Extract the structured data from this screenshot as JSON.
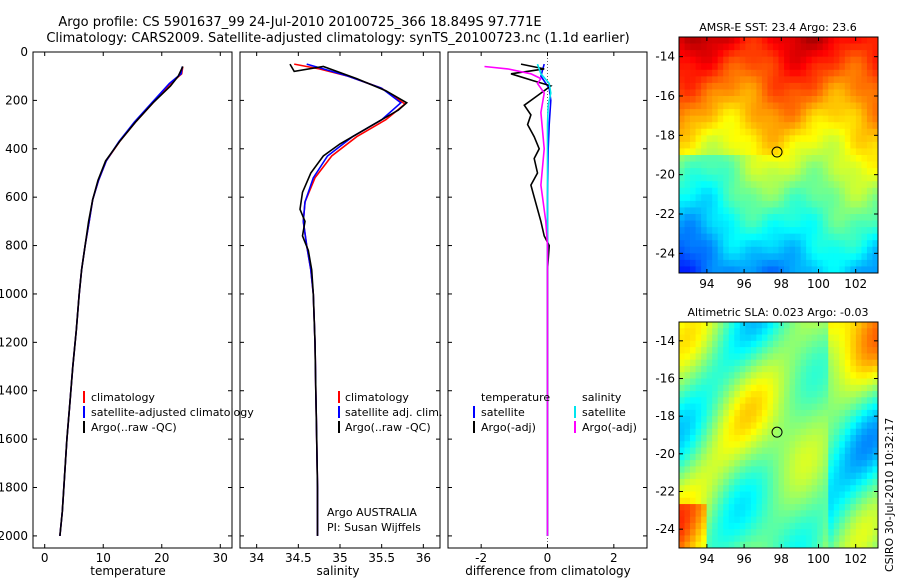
{
  "header": {
    "line1": "Argo profile: CS 5901637_99 24-Jul-2010 20100725_366 18.849S 97.771E",
    "line2": "Climatology: CARS2009. Satellite-adjusted climatology: synTS_20100723.nc (1.1d earlier)"
  },
  "footer": {
    "stamp": "CSIRO 30-Jul-2010 10:32:17"
  },
  "colors": {
    "climatology": "#ff0000",
    "satellite": "#0000ff",
    "argo": "#000000",
    "sal_satellite": "#00e5ee",
    "sal_argo": "#ff00ff"
  },
  "chart_data": [
    {
      "type": "line",
      "name": "temperature-panel",
      "xlabel": "temperature",
      "ylabel": "",
      "xlim": [
        -2,
        32
      ],
      "ylim": [
        0,
        2050
      ],
      "y_reversed": true,
      "xticks": [
        "0",
        "10",
        "20",
        "30"
      ],
      "xtick_values": [
        0,
        10,
        20,
        30
      ],
      "yticks": [
        "0",
        "200",
        "400",
        "600",
        "800",
        "1000",
        "1200",
        "1400",
        "1600",
        "1800",
        "2000"
      ],
      "ytick_values": [
        0,
        200,
        400,
        600,
        800,
        1000,
        1200,
        1400,
        1600,
        1800,
        2000
      ],
      "legend": [
        "climatology",
        "satellite-adjusted climatology",
        "Argo(..raw -QC)"
      ],
      "series": [
        {
          "name": "climatology",
          "points": [
            [
              23.6,
              60
            ],
            [
              23.4,
              90
            ],
            [
              21.5,
              130
            ],
            [
              18.5,
              210
            ],
            [
              15.5,
              290
            ],
            [
              12.8,
              370
            ],
            [
              10.5,
              450
            ],
            [
              9.2,
              530
            ],
            [
              8.2,
              610
            ],
            [
              7.6,
              700
            ],
            [
              6.9,
              800
            ],
            [
              6.3,
              900
            ],
            [
              5.9,
              1000
            ],
            [
              5.4,
              1150
            ],
            [
              4.8,
              1300
            ],
            [
              4.3,
              1450
            ],
            [
              3.8,
              1600
            ],
            [
              3.4,
              1750
            ],
            [
              3.0,
              1900
            ],
            [
              2.6,
              2000
            ]
          ]
        },
        {
          "name": "satellite",
          "points": [
            [
              23.5,
              60
            ],
            [
              23.3,
              90
            ],
            [
              21.3,
              130
            ],
            [
              18.3,
              210
            ],
            [
              15.3,
              290
            ],
            [
              12.7,
              370
            ],
            [
              10.5,
              450
            ],
            [
              9.2,
              530
            ],
            [
              8.2,
              610
            ],
            [
              7.6,
              700
            ],
            [
              6.9,
              800
            ],
            [
              6.3,
              900
            ],
            [
              5.9,
              1000
            ],
            [
              5.4,
              1150
            ],
            [
              4.8,
              1300
            ],
            [
              4.3,
              1450
            ],
            [
              3.8,
              1600
            ],
            [
              3.4,
              1750
            ],
            [
              3.0,
              1900
            ],
            [
              2.6,
              2000
            ]
          ]
        },
        {
          "name": "argo",
          "points": [
            [
              23.6,
              60
            ],
            [
              22.8,
              100
            ],
            [
              21.5,
              140
            ],
            [
              18.5,
              210
            ],
            [
              15.5,
              290
            ],
            [
              12.8,
              370
            ],
            [
              10.4,
              450
            ],
            [
              9.1,
              530
            ],
            [
              8.2,
              610
            ],
            [
              7.5,
              700
            ],
            [
              6.9,
              800
            ],
            [
              6.3,
              900
            ],
            [
              5.9,
              1000
            ],
            [
              5.4,
              1150
            ],
            [
              4.8,
              1300
            ],
            [
              4.3,
              1450
            ],
            [
              3.8,
              1600
            ],
            [
              3.4,
              1750
            ],
            [
              3.0,
              1900
            ],
            [
              2.6,
              2000
            ]
          ]
        }
      ]
    },
    {
      "type": "line",
      "name": "salinity-panel",
      "xlabel": "salinity",
      "xlim": [
        33.8,
        36.2
      ],
      "ylim": [
        0,
        2050
      ],
      "y_reversed": true,
      "xticks": [
        "34",
        "34.5",
        "35",
        "35.5",
        "36"
      ],
      "xtick_values": [
        34,
        34.5,
        35,
        35.5,
        36
      ],
      "legend": [
        "climatology",
        "satellite adj. clim.",
        "Argo(..raw -QC)"
      ],
      "annotations": [
        "Argo AUSTRALIA",
        "PI: Susan Wijffels"
      ],
      "series": [
        {
          "name": "climatology",
          "points": [
            [
              34.45,
              50
            ],
            [
              34.75,
              70
            ],
            [
              35.1,
              100
            ],
            [
              35.5,
              150
            ],
            [
              35.78,
              215
            ],
            [
              35.55,
              280
            ],
            [
              35.2,
              350
            ],
            [
              34.9,
              430
            ],
            [
              34.7,
              520
            ],
            [
              34.58,
              620
            ],
            [
              34.56,
              700
            ],
            [
              34.6,
              800
            ],
            [
              34.65,
              900
            ],
            [
              34.68,
              1000
            ],
            [
              34.7,
              1200
            ],
            [
              34.71,
              1400
            ],
            [
              34.72,
              1600
            ],
            [
              34.73,
              1800
            ],
            [
              34.73,
              2000
            ]
          ]
        },
        {
          "name": "satellite",
          "points": [
            [
              34.6,
              50
            ],
            [
              34.8,
              70
            ],
            [
              35.1,
              100
            ],
            [
              35.5,
              150
            ],
            [
              35.73,
              210
            ],
            [
              35.5,
              280
            ],
            [
              35.15,
              350
            ],
            [
              34.85,
              430
            ],
            [
              34.68,
              520
            ],
            [
              34.58,
              620
            ],
            [
              34.56,
              700
            ],
            [
              34.6,
              800
            ],
            [
              34.65,
              900
            ],
            [
              34.68,
              1000
            ],
            [
              34.7,
              1200
            ],
            [
              34.71,
              1400
            ],
            [
              34.72,
              1600
            ],
            [
              34.73,
              1800
            ],
            [
              34.73,
              2000
            ]
          ]
        },
        {
          "name": "argo",
          "points": [
            [
              34.4,
              50
            ],
            [
              34.45,
              80
            ],
            [
              34.8,
              60
            ],
            [
              35.2,
              110
            ],
            [
              35.55,
              160
            ],
            [
              35.8,
              210
            ],
            [
              35.7,
              240
            ],
            [
              35.3,
              320
            ],
            [
              35.0,
              380
            ],
            [
              34.8,
              430
            ],
            [
              34.65,
              500
            ],
            [
              34.55,
              580
            ],
            [
              34.52,
              650
            ],
            [
              34.58,
              700
            ],
            [
              34.55,
              760
            ],
            [
              34.62,
              820
            ],
            [
              34.66,
              900
            ],
            [
              34.68,
              1000
            ],
            [
              34.7,
              1200
            ],
            [
              34.71,
              1400
            ],
            [
              34.72,
              1600
            ],
            [
              34.73,
              1800
            ],
            [
              34.73,
              2000
            ]
          ]
        }
      ]
    },
    {
      "type": "line",
      "name": "difference-panel",
      "xlabel": "difference from climatology",
      "xlim": [
        -3,
        3
      ],
      "ylim": [
        0,
        2050
      ],
      "y_reversed": true,
      "xticks": [
        "-2",
        "0",
        "2"
      ],
      "xtick_values": [
        -2,
        0,
        2
      ],
      "legend_temperature": [
        "temperature",
        "satellite",
        "Argo(-adj)"
      ],
      "legend_salinity": [
        "salinity",
        "satellite",
        "Argo(-adj)"
      ],
      "series": [
        {
          "name": "temperature satellite",
          "points": [
            [
              -0.1,
              50
            ],
            [
              -0.2,
              100
            ],
            [
              0.05,
              150
            ],
            [
              0.1,
              200
            ],
            [
              0.05,
              300
            ],
            [
              0.02,
              400
            ],
            [
              0.0,
              600
            ],
            [
              0.0,
              1000
            ],
            [
              0.0,
              2000
            ]
          ]
        },
        {
          "name": "temperature argo",
          "points": [
            [
              -0.8,
              50
            ],
            [
              -0.1,
              70
            ],
            [
              -1.1,
              90
            ],
            [
              -0.4,
              120
            ],
            [
              0.1,
              140
            ],
            [
              -0.3,
              180
            ],
            [
              -0.7,
              220
            ],
            [
              -0.5,
              260
            ],
            [
              -0.6,
              300
            ],
            [
              -0.4,
              350
            ],
            [
              -0.25,
              400
            ],
            [
              -0.4,
              440
            ],
            [
              -0.3,
              500
            ],
            [
              -0.5,
              550
            ],
            [
              -0.4,
              600
            ],
            [
              -0.2,
              700
            ],
            [
              -0.1,
              760
            ],
            [
              0.05,
              800
            ],
            [
              0.0,
              900
            ],
            [
              0.0,
              1200
            ],
            [
              0.0,
              2000
            ]
          ]
        },
        {
          "name": "salinity satellite",
          "points": [
            [
              -0.3,
              50
            ],
            [
              -0.2,
              90
            ],
            [
              0.05,
              130
            ],
            [
              0.1,
              170
            ],
            [
              0.02,
              220
            ],
            [
              0.0,
              300
            ],
            [
              0.0,
              600
            ],
            [
              0.0,
              1000
            ],
            [
              0.0,
              2000
            ]
          ]
        },
        {
          "name": "salinity argo",
          "points": [
            [
              -1.9,
              60
            ],
            [
              -1.2,
              70
            ],
            [
              -0.5,
              90
            ],
            [
              -0.2,
              110
            ],
            [
              -0.3,
              130
            ],
            [
              -0.1,
              170
            ],
            [
              -0.2,
              250
            ],
            [
              -0.1,
              400
            ],
            [
              -0.2,
              550
            ],
            [
              -0.05,
              700
            ],
            [
              0.0,
              800
            ],
            [
              0.0,
              1000
            ],
            [
              0.0,
              2000
            ]
          ]
        }
      ]
    },
    {
      "type": "heatmap",
      "name": "sst-map",
      "title": "AMSR-E SST: 23.4 Argo: 23.6",
      "xlim": [
        92.5,
        103.2
      ],
      "ylim": [
        -25,
        -13
      ],
      "xticks": [
        "94",
        "96",
        "98",
        "100",
        "102"
      ],
      "xtick_values": [
        94,
        96,
        98,
        100,
        102
      ],
      "yticks": [
        "-14",
        "-16",
        "-18",
        "-20",
        "-22",
        "-24"
      ],
      "ytick_values": [
        -14,
        -16,
        -18,
        -20,
        -22,
        -24
      ],
      "marker": [
        97.771,
        -18.849
      ]
    },
    {
      "type": "heatmap",
      "name": "sla-map",
      "title": "Altimetric SLA: 0.023 Argo: -0.03",
      "xlim": [
        92.5,
        103.2
      ],
      "ylim": [
        -25,
        -13
      ],
      "xticks": [
        "94",
        "96",
        "98",
        "100",
        "102"
      ],
      "xtick_values": [
        94,
        96,
        98,
        100,
        102
      ],
      "yticks": [
        "-14",
        "-16",
        "-18",
        "-20",
        "-22",
        "-24"
      ],
      "ytick_values": [
        -14,
        -16,
        -18,
        -20,
        -22,
        -24
      ],
      "marker": [
        97.771,
        -18.849
      ]
    }
  ]
}
